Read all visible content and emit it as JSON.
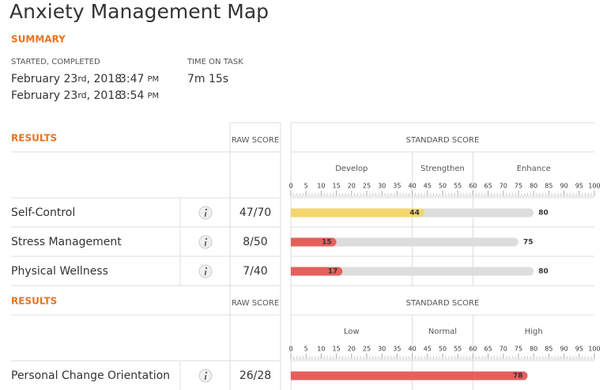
{
  "header": {
    "title": "Anxiety Management Map"
  },
  "summary": {
    "label": "SUMMARY",
    "started_label": "STARTED, COMPLETED",
    "time_label": "TIME ON TASK",
    "time_value": "7m 15s",
    "dates": [
      {
        "day": "February 23",
        "suffix": "rd",
        "year": ", 2018",
        "time": "3:47",
        "meridiem": "PM"
      },
      {
        "day": "February 23",
        "suffix": "rd",
        "year": ", 2018",
        "time": "3:54",
        "meridiem": "PM"
      }
    ]
  },
  "sections": [
    {
      "label": "RESULTS",
      "raw_header": "RAW SCORE",
      "standard_header": "STANDARD SCORE",
      "bands": [
        {
          "label": "Develop",
          "from": 0,
          "to": 40
        },
        {
          "label": "Strengthen",
          "from": 40,
          "to": 60
        },
        {
          "label": "Enhance",
          "from": 60,
          "to": 100
        }
      ],
      "xlim": [
        0,
        100
      ],
      "xticks": [
        0,
        5,
        10,
        15,
        20,
        25,
        30,
        35,
        40,
        45,
        50,
        55,
        60,
        65,
        70,
        75,
        80,
        85,
        90,
        95,
        100
      ],
      "rows": [
        {
          "name": "Self-Control",
          "raw": "47/70",
          "score": 44,
          "range_end": 80,
          "color": "#f3d66e"
        },
        {
          "name": "Stress Management",
          "raw": "8/50",
          "score": 15,
          "range_end": 75,
          "color": "#e5605c"
        },
        {
          "name": "Physical Wellness",
          "raw": "7/40",
          "score": 17,
          "range_end": 80,
          "color": "#e5605c"
        }
      ]
    },
    {
      "label": "RESULTS",
      "raw_header": "RAW SCORE",
      "standard_header": "STANDARD SCORE",
      "bands": [
        {
          "label": "Low",
          "from": 0,
          "to": 40
        },
        {
          "label": "Normal",
          "from": 40,
          "to": 60
        },
        {
          "label": "High",
          "from": 60,
          "to": 100
        }
      ],
      "xlim": [
        0,
        100
      ],
      "xticks": [
        0,
        5,
        10,
        15,
        20,
        25,
        30,
        35,
        40,
        45,
        50,
        55,
        60,
        65,
        70,
        75,
        80,
        85,
        90,
        95,
        100
      ],
      "rows": [
        {
          "name": "Personal Change Orientation",
          "raw": "26/28",
          "score": 78,
          "color": "#e5605c"
        }
      ]
    }
  ]
}
